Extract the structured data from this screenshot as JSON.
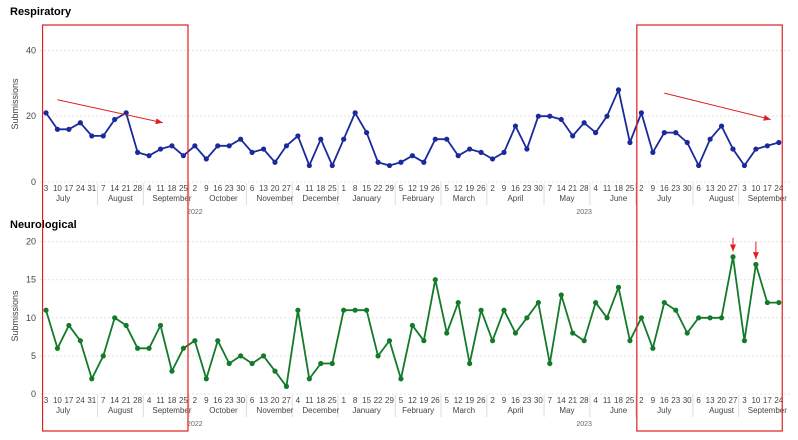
{
  "colors": {
    "respiratory": "#1a2a9b",
    "neurological": "#137a2a",
    "highlight": "#e02020",
    "grid": "#e4e4e4"
  },
  "chart_data": [
    {
      "type": "line",
      "title": "Respiratory",
      "ylabel": "Submissions",
      "ylim": [
        0,
        48
      ],
      "yticks": [
        0,
        20,
        40
      ],
      "grid": true,
      "series": [
        {
          "values": [
            21,
            16,
            16,
            18,
            14,
            14,
            19,
            21,
            9,
            8,
            10,
            11,
            8,
            11,
            7,
            11,
            11,
            13,
            9,
            10,
            6,
            11,
            14,
            5,
            13,
            5,
            13,
            21,
            15,
            6,
            5,
            6,
            8,
            6,
            13,
            13,
            8,
            10,
            9,
            7,
            9,
            17,
            10,
            20,
            20,
            19,
            14,
            18,
            15,
            20,
            28,
            12,
            21,
            9,
            15,
            15,
            12,
            5,
            13,
            17,
            10,
            5,
            10,
            11,
            12
          ]
        }
      ]
    },
    {
      "type": "line",
      "title": "Neurological",
      "ylabel": "Submissions",
      "ylim": [
        0,
        21
      ],
      "yticks": [
        0,
        5,
        10,
        15,
        20
      ],
      "grid": true,
      "series": [
        {
          "values": [
            11,
            6,
            9,
            7,
            2,
            5,
            10,
            9,
            6,
            6,
            9,
            3,
            6,
            7,
            2,
            7,
            4,
            5,
            4,
            5,
            3,
            1,
            11,
            2,
            4,
            4,
            11,
            11,
            11,
            5,
            7,
            2,
            9,
            7,
            15,
            8,
            12,
            4,
            11,
            7,
            11,
            8,
            10,
            12,
            4,
            13,
            8,
            7,
            12,
            10,
            14,
            7,
            10,
            6,
            12,
            11,
            8,
            10,
            10,
            10,
            18,
            7,
            17,
            12,
            12
          ]
        }
      ]
    }
  ],
  "x_axis": {
    "tick_labels": [
      "3",
      "10",
      "17",
      "24",
      "31",
      "7",
      "14",
      "21",
      "28",
      "4",
      "11",
      "18",
      "25",
      "2",
      "9",
      "16",
      "23",
      "30",
      "6",
      "13",
      "20",
      "27",
      "4",
      "11",
      "18",
      "25",
      "1",
      "8",
      "15",
      "22",
      "29",
      "5",
      "12",
      "19",
      "26",
      "5",
      "12",
      "19",
      "26",
      "2",
      "9",
      "16",
      "23",
      "30",
      "7",
      "14",
      "21",
      "28",
      "4",
      "11",
      "18",
      "25",
      "2",
      "9",
      "16",
      "23",
      "30",
      "6",
      "13",
      "20",
      "27",
      "3",
      "10",
      "17",
      "24"
    ],
    "months": [
      {
        "label": "July",
        "at": 1.5
      },
      {
        "label": "August",
        "at": 6.5
      },
      {
        "label": "September",
        "at": 11
      },
      {
        "label": "October",
        "at": 15.5
      },
      {
        "label": "November",
        "at": 20
      },
      {
        "label": "December",
        "at": 24
      },
      {
        "label": "January",
        "at": 28
      },
      {
        "label": "February",
        "at": 32.5
      },
      {
        "label": "March",
        "at": 36.5
      },
      {
        "label": "April",
        "at": 41
      },
      {
        "label": "May",
        "at": 45.5
      },
      {
        "label": "June",
        "at": 50
      },
      {
        "label": "July",
        "at": 54
      },
      {
        "label": "August",
        "at": 59
      },
      {
        "label": "September",
        "at": 63
      }
    ],
    "month_starts": [
      5,
      9,
      13,
      18,
      22,
      26,
      31,
      35,
      39,
      44,
      48,
      52,
      57,
      61
    ],
    "years": [
      {
        "label": "2022",
        "at": 13
      },
      {
        "label": "2023",
        "at": 47
      }
    ]
  },
  "annotations": {
    "boxes": [
      {
        "from": -0.3,
        "to": 12.4
      },
      {
        "from": 51.6,
        "to": 64.3
      }
    ],
    "trend_arrows": [
      {
        "from": [
          1.0,
          25
        ],
        "to": [
          10.2,
          18
        ]
      },
      {
        "from": [
          54.0,
          27
        ],
        "to": [
          63.3,
          19
        ]
      }
    ],
    "down_arrows": [
      {
        "x": 60,
        "top": 20.5,
        "bottom": 18.7
      },
      {
        "x": 62,
        "top": 20.0,
        "bottom": 17.7
      }
    ]
  }
}
